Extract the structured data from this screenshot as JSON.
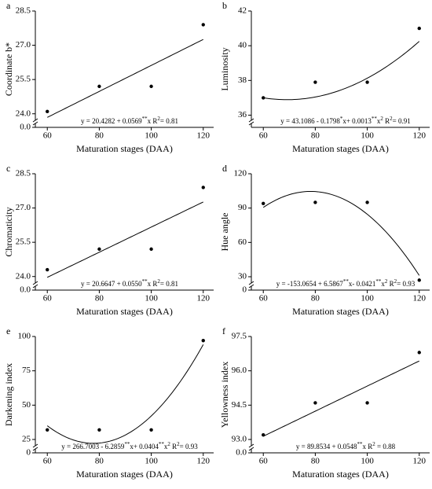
{
  "chart_data": [
    {
      "type": "scatter",
      "label": "a",
      "ylabel": "Coordinate b*",
      "xlabel": "Maturation stages (DAA)",
      "x": [
        60,
        80,
        100,
        120
      ],
      "values": [
        24.1,
        25.2,
        25.2,
        27.9
      ],
      "color": "#000000",
      "xlim": [
        55.4,
        124
      ],
      "xticks": [
        60,
        80,
        100,
        120
      ],
      "ylim": [
        23.75,
        28.5
      ],
      "yticks": [
        {
          "value": 0,
          "label": "0.0"
        },
        {
          "value": 24,
          "label": "24.0"
        },
        25.5,
        {
          "value": 27,
          "label": "27.0"
        },
        28.5
      ],
      "ybreak": true,
      "fit": [
        20.4282,
        0.0569
      ],
      "equation": [
        {
          "text": "y = 20.4282 + 0.0569"
        },
        {
          "text": "**",
          "sup": true
        },
        {
          "text": "x R"
        },
        {
          "text": "2",
          "sup": true
        },
        {
          "text": "= 0.81"
        }
      ]
    },
    {
      "type": "scatter",
      "label": "b",
      "ylabel": "Luminosity",
      "xlabel": "Maturation stages (DAA)",
      "x": [
        60,
        80,
        100,
        120
      ],
      "values": [
        37.0,
        37.9,
        37.9,
        41.0
      ],
      "color": "#000000",
      "xlim": [
        55.4,
        124
      ],
      "xticks": [
        60,
        80,
        100,
        120
      ],
      "ylim": [
        35.75,
        42
      ],
      "yticks": [
        36,
        38,
        40,
        42
      ],
      "ybreak": true,
      "fit": [
        43.1086,
        -0.1798,
        0.0013
      ],
      "equation": [
        {
          "text": "y = 43.1086 - 0.1798"
        },
        {
          "text": "*",
          "sup": true
        },
        {
          "text": "x+ 0.0013"
        },
        {
          "text": "**",
          "sup": true
        },
        {
          "text": "x"
        },
        {
          "text": "2",
          "sup": true
        },
        {
          "text": "  R"
        },
        {
          "text": "2",
          "sup": true
        },
        {
          "text": "= 0.91"
        }
      ]
    },
    {
      "type": "scatter",
      "label": "c",
      "ylabel": "Chromaticity",
      "xlabel": "Maturation stages (DAA)",
      "x": [
        60,
        80,
        100,
        120
      ],
      "values": [
        24.3,
        25.2,
        25.2,
        27.9
      ],
      "color": "#000000",
      "xlim": [
        55.4,
        124
      ],
      "xticks": [
        60,
        80,
        100,
        120
      ],
      "ylim": [
        23.75,
        28.5
      ],
      "yticks": [
        {
          "value": 0,
          "label": "0.0"
        },
        {
          "value": 24,
          "label": "24.0"
        },
        25.5,
        {
          "value": 27,
          "label": "27.0"
        },
        28.5
      ],
      "ybreak": true,
      "fit": [
        20.6647,
        0.055
      ],
      "equation": [
        {
          "text": "y = 20.6647 + 0.0550"
        },
        {
          "text": "**",
          "sup": true
        },
        {
          "text": "x  R"
        },
        {
          "text": "2",
          "sup": true
        },
        {
          "text": "= 0.81"
        }
      ]
    },
    {
      "type": "scatter",
      "label": "d",
      "ylabel": "Hue angle",
      "xlabel": "Maturation stages (DAA)",
      "x": [
        60,
        80,
        100,
        120
      ],
      "values": [
        94,
        95,
        95,
        27
      ],
      "color": "#000000",
      "xlim": [
        55.4,
        124
      ],
      "xticks": [
        60,
        80,
        100,
        120
      ],
      "ylim": [
        25.2,
        120
      ],
      "yticks": [
        0,
        30,
        60,
        90,
        120
      ],
      "ybreak": true,
      "fit": [
        -153.0654,
        6.5867,
        -0.0421
      ],
      "equation": [
        {
          "text": "y = -153.0654 + 6.5867"
        },
        {
          "text": "**",
          "sup": true
        },
        {
          "text": "x- 0.0421"
        },
        {
          "text": "**",
          "sup": true
        },
        {
          "text": "x"
        },
        {
          "text": "2",
          "sup": true
        },
        {
          "text": " R"
        },
        {
          "text": "2",
          "sup": true
        },
        {
          "text": "= 0.93"
        }
      ]
    },
    {
      "type": "scatter",
      "label": "e",
      "ylabel": "Darkening index",
      "xlabel": "Maturation stages (DAA)",
      "x": [
        60,
        80,
        100,
        120
      ],
      "values": [
        32,
        32,
        32,
        97
      ],
      "color": "#000000",
      "xlim": [
        55.4,
        124
      ],
      "xticks": [
        60,
        80,
        100,
        120
      ],
      "ylim": [
        21,
        100
      ],
      "yticks": [
        0,
        25,
        50,
        75,
        100
      ],
      "ybreak": true,
      "fit": [
        266.7003,
        -6.2859,
        0.0404
      ],
      "equation": [
        {
          "text": "y = 266.7003 - 6.2859"
        },
        {
          "text": "**",
          "sup": true
        },
        {
          "text": "x+ 0.0404"
        },
        {
          "text": "**",
          "sup": true
        },
        {
          "text": "x"
        },
        {
          "text": "2",
          "sup": true
        },
        {
          "text": " R"
        },
        {
          "text": "2",
          "sup": true
        },
        {
          "text": "= 0.93"
        }
      ]
    },
    {
      "type": "scatter",
      "label": "f",
      "ylabel": "Yellowness index",
      "xlabel": "Maturation stages (DAA)",
      "x": [
        60,
        80,
        100,
        120
      ],
      "values": [
        93.2,
        94.6,
        94.6,
        96.8
      ],
      "color": "#000000",
      "xlim": [
        55.4,
        124
      ],
      "xticks": [
        60,
        80,
        100,
        120
      ],
      "ylim": [
        92.76,
        97.5
      ],
      "yticks": [
        {
          "value": 0,
          "label": "0.0"
        },
        {
          "value": 93,
          "label": "93.0"
        },
        94.5,
        {
          "value": 96,
          "label": "96.0"
        },
        97.5
      ],
      "ybreak": true,
      "fit": [
        89.8534,
        0.0548
      ],
      "equation": [
        {
          "text": "y = 89.8534 + 0.0548"
        },
        {
          "text": "**",
          "sup": true
        },
        {
          "text": "x  R"
        },
        {
          "text": "2",
          "sup": true
        },
        {
          "text": " = 0.88"
        }
      ]
    }
  ]
}
